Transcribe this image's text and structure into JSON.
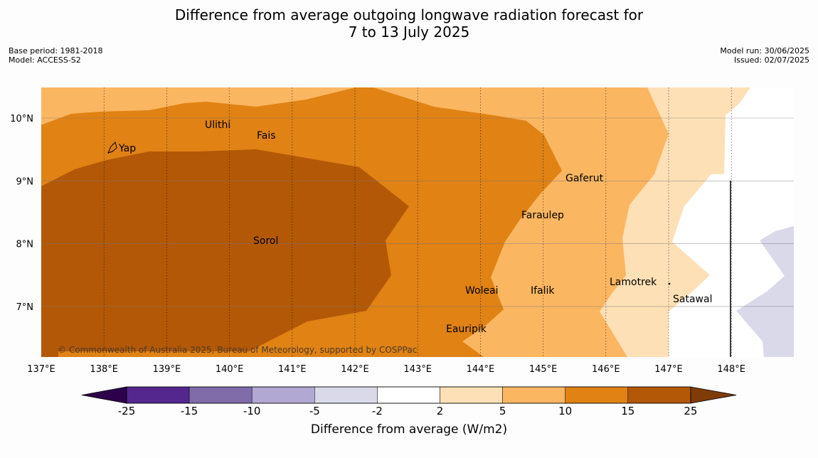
{
  "title": {
    "line1": "Difference from average outgoing longwave radiation forecast for",
    "line2": "7 to 13 July 2025"
  },
  "meta_left": {
    "base_period": "Base period: 1981-2018",
    "model": "Model: ACCESS-S2"
  },
  "meta_right": {
    "model_run": "Model run: 30/06/2025",
    "issued": "Issued: 02/07/2025"
  },
  "map": {
    "copyright": "© Commonwealth of Australia 2025, Bureau of Meteorology, supported by COSPPac",
    "lon_ticks": [
      "137°E",
      "138°E",
      "139°E",
      "140°E",
      "141°E",
      "142°E",
      "143°E",
      "144°E",
      "145°E",
      "146°E",
      "147°E",
      "148°E"
    ],
    "lat_ticks": [
      "10°N",
      "9°N",
      "8°N",
      "7°N"
    ],
    "places": [
      "Ulithi",
      "Fais",
      "Yap",
      "Gaferut",
      "Faraulep",
      "Sorol",
      "Lamotrek",
      "Woleai",
      "Ifalik",
      "Satawal",
      "Eauripik"
    ]
  },
  "colorbar": {
    "ticks": [
      "-25",
      "-15",
      "-10",
      "-5",
      "-2",
      "2",
      "5",
      "10",
      "15",
      "25"
    ],
    "colors": [
      "#54278f",
      "#7f6ca8",
      "#b1a9d3",
      "#d9d9ea",
      "#ffffff",
      "#fee0b6",
      "#fbb661",
      "#e08214",
      "#b35806"
    ],
    "extend_low": "#2d004b",
    "extend_high": "#7f3b08",
    "label": "Difference from average (W/m2)"
  }
}
